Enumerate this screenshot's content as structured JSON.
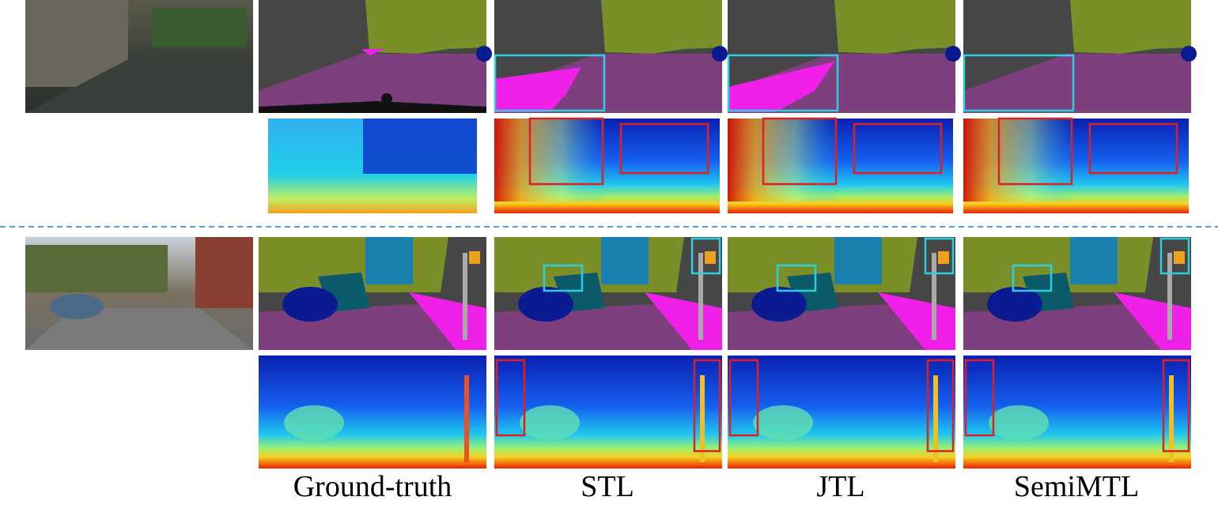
{
  "column_labels": [
    "Ground-truth",
    "STL",
    "JTL",
    "SemiMTL"
  ]
}
